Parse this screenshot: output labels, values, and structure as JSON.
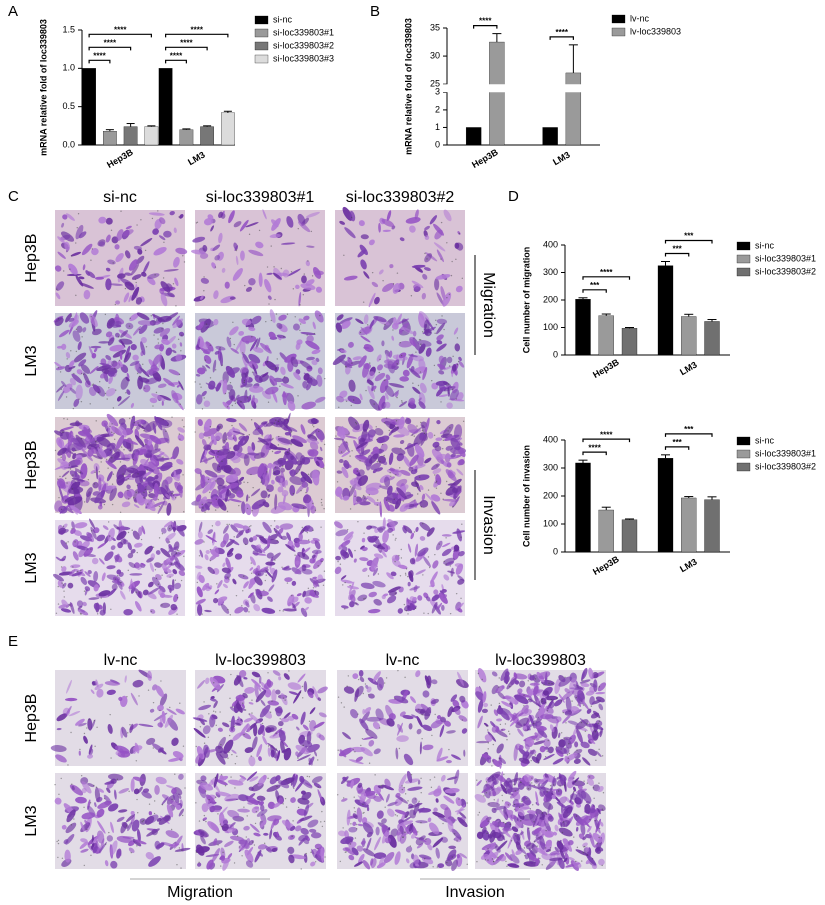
{
  "panel_labels": [
    "A",
    "B",
    "C",
    "D",
    "E"
  ],
  "chart_data": [
    {
      "type": "bar",
      "y_label": "mRNA relative fold of loc339803",
      "categories": [
        "Hep3B",
        "LM3"
      ],
      "series": [
        {
          "name": "si-nc",
          "color": "#000000",
          "values": [
            1.0,
            1.0
          ],
          "errors": [
            0,
            0
          ]
        },
        {
          "name": "si-loc339803#1",
          "color": "#9a9a9a",
          "values": [
            0.18,
            0.2
          ],
          "errors": [
            0.02,
            0.01
          ]
        },
        {
          "name": "si-loc339803#2",
          "color": "#777777",
          "values": [
            0.24,
            0.24
          ],
          "errors": [
            0.04,
            0.01
          ]
        },
        {
          "name": "si-loc339803#3",
          "color": "#dcdcdc",
          "values": [
            0.24,
            0.42
          ],
          "errors": [
            0.01,
            0.02
          ]
        }
      ],
      "ylim": [
        0,
        1.5
      ],
      "yticks": [
        {
          "value": 0,
          "label": "0.0"
        },
        {
          "value": 0.5,
          "label": "0.5"
        },
        {
          "value": 1,
          "label": "1.0"
        },
        {
          "value": 1.5,
          "label": "1.5"
        }
      ],
      "annotations": [
        {
          "text": "****",
          "category": 0,
          "to": 1
        },
        {
          "text": "****",
          "category": 0,
          "to": 2
        },
        {
          "text": "****",
          "category": 0,
          "to": 3
        },
        {
          "text": "****",
          "category": 1,
          "to": 1
        },
        {
          "text": "****",
          "category": 1,
          "to": 2
        },
        {
          "text": "****",
          "category": 1,
          "to": 3
        }
      ]
    },
    {
      "type": "bar",
      "y_label": "mRNA relative fold of loc339803",
      "categories": [
        "Hep3B",
        "LM3"
      ],
      "series": [
        {
          "name": "lv-nc",
          "color": "#000000",
          "values": [
            1,
            1
          ],
          "errors": [
            0,
            0
          ]
        },
        {
          "name": "lv-loc339803",
          "color": "#9a9a9a",
          "values": [
            32.5,
            27
          ],
          "errors": [
            1.5,
            5
          ]
        }
      ],
      "ylim": [
        0,
        35
      ],
      "ybreak": [
        3,
        25
      ],
      "yticks": [
        0,
        1,
        2,
        3,
        25,
        30,
        35
      ],
      "annotations": [
        {
          "text": "****",
          "category": 0,
          "to": 1
        },
        {
          "text": "****",
          "category": 1,
          "to": 1
        }
      ]
    },
    {
      "type": "bar",
      "y_label": "Cell number of migration",
      "categories": [
        "Hep3B",
        "LM3"
      ],
      "series": [
        {
          "name": "si-nc",
          "color": "#000000",
          "values": [
            203,
            325
          ],
          "errors": [
            5,
            15
          ]
        },
        {
          "name": "si-loc339803#1",
          "color": "#9a9a9a",
          "values": [
            143,
            140
          ],
          "errors": [
            6,
            8
          ]
        },
        {
          "name": "si-loc339803#2",
          "color": "#707070",
          "values": [
            97,
            122
          ],
          "errors": [
            3,
            7
          ]
        }
      ],
      "ylim": [
        0,
        400
      ],
      "yticks": [
        0,
        100,
        200,
        300,
        400
      ],
      "annotations": [
        {
          "text": "***",
          "category": 0,
          "to": 1
        },
        {
          "text": "****",
          "category": 0,
          "to": 2
        },
        {
          "text": "***",
          "category": 1,
          "to": 1
        },
        {
          "text": "***",
          "category": 1,
          "to": 2
        }
      ]
    },
    {
      "type": "bar",
      "y_label": "Cell number of invasion",
      "categories": [
        "Hep3B",
        "LM3"
      ],
      "series": [
        {
          "name": "si-nc",
          "color": "#000000",
          "values": [
            318,
            335
          ],
          "errors": [
            10,
            12
          ]
        },
        {
          "name": "si-loc339803#1",
          "color": "#9a9a9a",
          "values": [
            150,
            193
          ],
          "errors": [
            10,
            5
          ]
        },
        {
          "name": "si-loc339803#2",
          "color": "#707070",
          "values": [
            115,
            187
          ],
          "errors": [
            3,
            10
          ]
        }
      ],
      "ylim": [
        0,
        400
      ],
      "yticks": [
        0,
        100,
        200,
        300,
        400
      ],
      "annotations": [
        {
          "text": "****",
          "category": 0,
          "to": 1
        },
        {
          "text": "****",
          "category": 0,
          "to": 2
        },
        {
          "text": "***",
          "category": 1,
          "to": 1
        },
        {
          "text": "***",
          "category": 1,
          "to": 2
        }
      ]
    }
  ],
  "panel_c": {
    "columns": [
      "si-nc",
      "si-loc339803#1",
      "si-loc339803#2"
    ],
    "rows": [
      "Hep3B",
      "LM3",
      "Hep3B",
      "LM3"
    ],
    "groups": [
      "Migration",
      "Invasion"
    ]
  },
  "panel_e": {
    "columns": [
      "lv-nc",
      "lv-loc399803",
      "lv-nc",
      "lv-loc399803"
    ],
    "rows": [
      "Hep3B",
      "LM3"
    ],
    "groups": [
      "Migration",
      "Invasion"
    ]
  }
}
